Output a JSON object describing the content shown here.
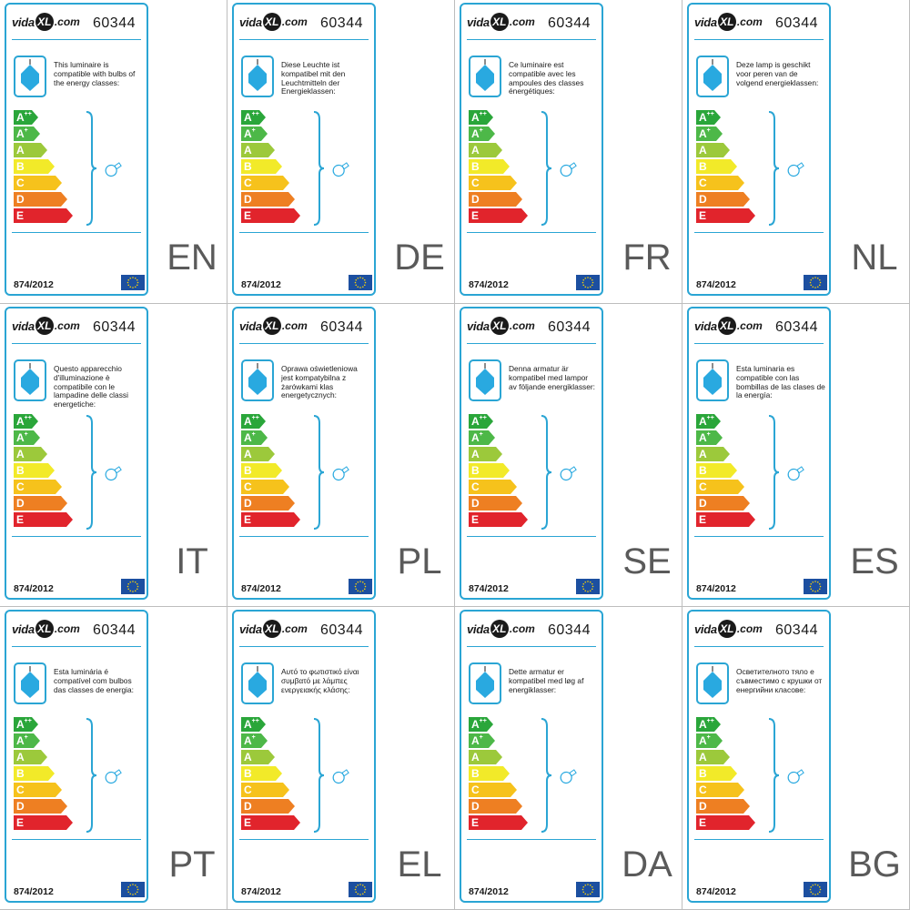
{
  "brand": {
    "vida": "vida",
    "xl": "XL",
    "com": ".com"
  },
  "product_code": "60344",
  "regulation": "874/2012",
  "icons": {
    "lamp": "pendant-lamp-icon",
    "bulb": "light-bulb-icon",
    "flag": "eu-flag-icon"
  },
  "energy_classes": [
    {
      "letter": "A",
      "sup": "++",
      "color": "#2aa63a",
      "width": 20
    },
    {
      "letter": "A",
      "sup": "+",
      "color": "#4db848",
      "width": 22
    },
    {
      "letter": "A",
      "sup": "",
      "color": "#9cc93b",
      "width": 30
    },
    {
      "letter": "B",
      "sup": "",
      "color": "#f2ea29",
      "width": 38
    },
    {
      "letter": "C",
      "sup": "",
      "color": "#f6c21c",
      "width": 46
    },
    {
      "letter": "D",
      "sup": "",
      "color": "#ee7f22",
      "width": 52
    },
    {
      "letter": "E",
      "sup": "",
      "color": "#e1242c",
      "width": 58
    }
  ],
  "labels": [
    {
      "lang": "EN",
      "text": "This luminaire is compatible with bulbs of the energy classes:"
    },
    {
      "lang": "DE",
      "text": "Diese Leuchte ist kompatibel mit den Leuchtmitteln der Energieklassen:"
    },
    {
      "lang": "FR",
      "text": "Ce luminaire est compatible avec les ampoules des classes énergétiques:"
    },
    {
      "lang": "NL",
      "text": "Deze lamp is geschikt voor peren van de volgend energieklassen:"
    },
    {
      "lang": "IT",
      "text": "Questo apparecchio d'illuminazione è compatibile con le lampadine delle classi energetiche:"
    },
    {
      "lang": "PL",
      "text": "Oprawa oświetleniowa jest kompatybilna z żarówkami klas energetycznych:"
    },
    {
      "lang": "SE",
      "text": "Denna armatur är kompatibel med lampor av följande energiklasser:"
    },
    {
      "lang": "ES",
      "text": "Esta luminaria es compatible con las bombillas de las clases de la energía:"
    },
    {
      "lang": "PT",
      "text": "Esta luminária é compatível com bulbos das classes de energia:"
    },
    {
      "lang": "EL",
      "text": "Αυτό το φωτιστικό είναι συμβατό με λάμπες ενεργειακής κλάσης:"
    },
    {
      "lang": "DA",
      "text": "Dette armatur er kompatibel med løg af energiklasser:"
    },
    {
      "lang": "BG",
      "text": "Осветителното тяло е съвместимо с крушки от енергийни класове:"
    }
  ]
}
